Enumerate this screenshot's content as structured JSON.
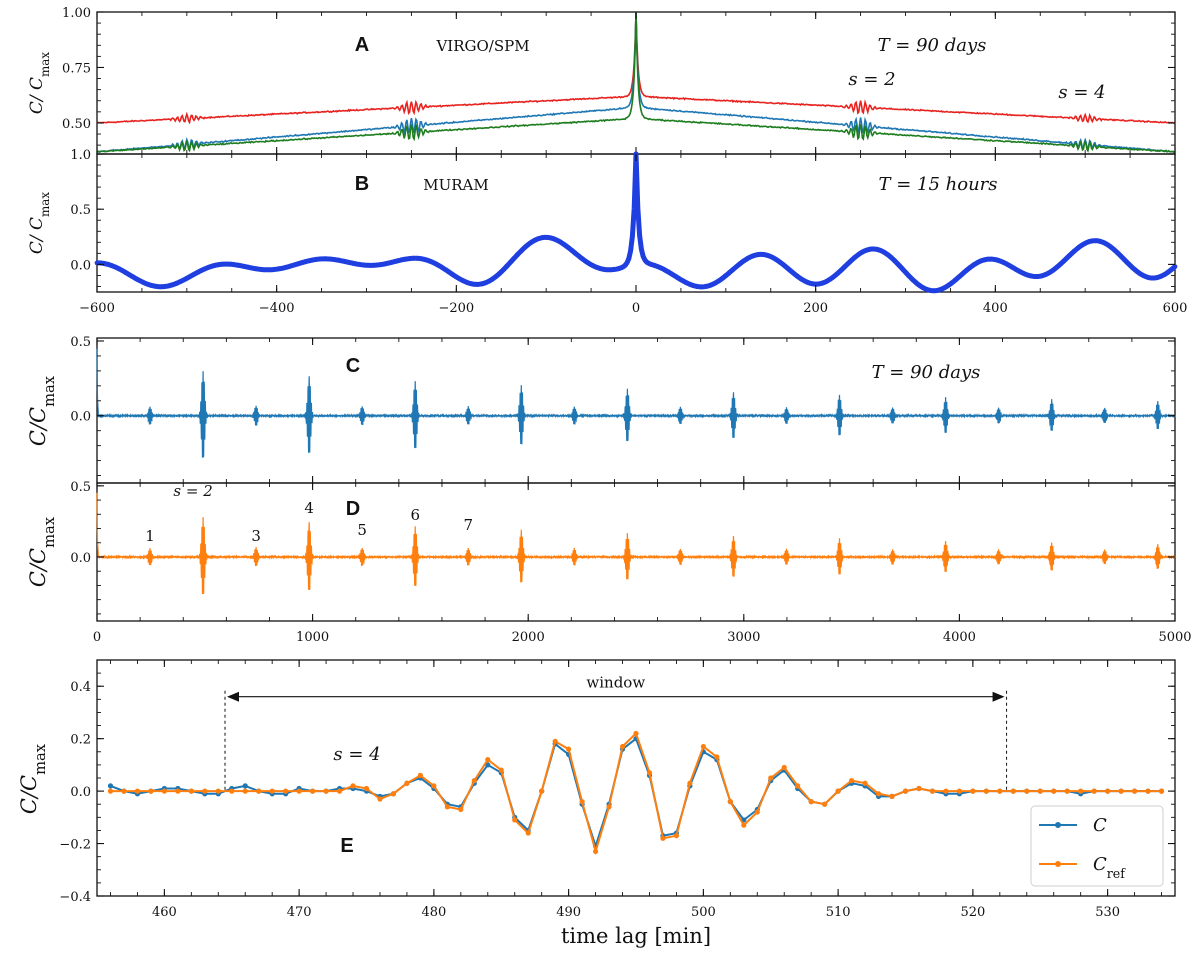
{
  "colors": {
    "red": "#e8231f",
    "blue_c": "#1f77b4",
    "green": "#1e7d1e",
    "muram": "#1f3fe0",
    "orange": "#ff7f0e",
    "axis": "#111111"
  },
  "x_label": "time lag [min]",
  "chart_data": [
    {
      "panel": "A",
      "type": "line",
      "label": "A",
      "title": "VIRGO/SPM",
      "duration": "T = 90  days",
      "ylabel": "C/ C_max",
      "xlim": [
        -600,
        600
      ],
      "ylim": [
        0.36,
        1.0
      ],
      "yticks": [
        "0.50",
        "0.75",
        "1.00"
      ],
      "annotations": [
        "s = 2",
        "s = 4"
      ],
      "series": [
        {
          "name": "red",
          "base_at_lag0": 0.62,
          "base_at_edge": 0.5,
          "peak": 1.0
        },
        {
          "name": "blue",
          "base_at_lag0": 0.57,
          "base_at_edge": 0.37,
          "peak": 1.0
        },
        {
          "name": "green",
          "base_at_lag0": 0.52,
          "base_at_edge": 0.37,
          "peak": 1.0
        }
      ],
      "oscillation_packets_min": [
        -500,
        -250,
        250,
        500
      ]
    },
    {
      "panel": "B",
      "type": "line",
      "label": "B",
      "title": "MURAM",
      "duration": "T = 15  hours",
      "ylabel": "C/ C_max",
      "xlim": [
        -600,
        600
      ],
      "ylim": [
        -0.25,
        1.0
      ],
      "yticks": [
        "0.0",
        "0.5",
        "1.0"
      ],
      "xticks": [
        "−600",
        "−400",
        "−200",
        "0",
        "200",
        "400",
        "600"
      ],
      "peak": 1.0
    },
    {
      "panel": "C",
      "type": "line",
      "label": "C",
      "duration": "T = 90 days",
      "ylabel": "C/C_max",
      "xlim": [
        0,
        5000
      ],
      "ylim": [
        -0.45,
        0.52
      ],
      "yticks": [
        "0.0",
        "0.5"
      ],
      "skip_spacing_min": 246,
      "first_skip_amplitude": 0.3
    },
    {
      "panel": "D",
      "type": "line",
      "label": "D",
      "ylabel": "C/C_max",
      "xlim": [
        0,
        5000
      ],
      "ylim": [
        -0.45,
        0.52
      ],
      "yticks": [
        "0.0",
        "0.5"
      ],
      "xticks": [
        "0",
        "1000",
        "2000",
        "3000",
        "4000",
        "5000"
      ],
      "skip_labels": [
        "s = 2",
        "1",
        "3",
        "4",
        "5",
        "6",
        "7"
      ],
      "skip_spacing_min": 246,
      "first_skip_amplitude": 0.28
    },
    {
      "panel": "E",
      "type": "line",
      "label": "E",
      "ylabel": "C/C_max",
      "xlabel": "time lag [min]",
      "xlim": [
        455,
        535
      ],
      "ylim": [
        -0.4,
        0.5
      ],
      "xticks": [
        "460",
        "470",
        "480",
        "490",
        "500",
        "510",
        "520",
        "530"
      ],
      "yticks": [
        "−0.4",
        "−0.2",
        "0.0",
        "0.2",
        "0.4"
      ],
      "annotation": "s = 4",
      "window_label": "window",
      "window_range": [
        464.5,
        522.5
      ],
      "legend": [
        "C",
        "C_ref"
      ],
      "series": [
        {
          "name": "C",
          "x": [
            456,
            457,
            458,
            459,
            460,
            461,
            462,
            463,
            464,
            465,
            466,
            467,
            468,
            469,
            470,
            471,
            472,
            473,
            474,
            475,
            476,
            477,
            478,
            479,
            480,
            481,
            482,
            483,
            484,
            485,
            486,
            487,
            488,
            489,
            490,
            491,
            492,
            493,
            494,
            495,
            496,
            497,
            498,
            499,
            500,
            501,
            502,
            503,
            504,
            505,
            506,
            507,
            508,
            509,
            510,
            511,
            512,
            513,
            514,
            515,
            516,
            517,
            518,
            519,
            520,
            521,
            522,
            523,
            524,
            525,
            526,
            527,
            528,
            529,
            530,
            531,
            532,
            533,
            534
          ],
          "y": [
            0.02,
            0.0,
            -0.01,
            0.0,
            0.01,
            0.01,
            0.0,
            -0.01,
            -0.01,
            0.01,
            0.02,
            0.0,
            -0.01,
            -0.01,
            0.01,
            0.0,
            0.0,
            0.01,
            0.01,
            0.0,
            -0.02,
            -0.01,
            0.03,
            0.05,
            0.01,
            -0.05,
            -0.06,
            0.03,
            0.1,
            0.07,
            -0.1,
            -0.15,
            0.0,
            0.18,
            0.14,
            -0.05,
            -0.21,
            -0.05,
            0.16,
            0.2,
            0.06,
            -0.17,
            -0.16,
            0.02,
            0.15,
            0.12,
            -0.04,
            -0.11,
            -0.07,
            0.04,
            0.08,
            0.01,
            -0.04,
            -0.05,
            0.0,
            0.03,
            0.02,
            -0.02,
            -0.02,
            0.0,
            0.01,
            0.0,
            -0.01,
            -0.01,
            0.0,
            0.0,
            0.0,
            0.0,
            0.0,
            0.0,
            0.0,
            0.0,
            -0.01,
            0.0,
            0.0,
            0.0,
            0.0,
            0.0,
            0.0
          ]
        },
        {
          "name": "C_ref",
          "x": [
            456,
            457,
            458,
            459,
            460,
            461,
            462,
            463,
            464,
            465,
            466,
            467,
            468,
            469,
            470,
            471,
            472,
            473,
            474,
            475,
            476,
            477,
            478,
            479,
            480,
            481,
            482,
            483,
            484,
            485,
            486,
            487,
            488,
            489,
            490,
            491,
            492,
            493,
            494,
            495,
            496,
            497,
            498,
            499,
            500,
            501,
            502,
            503,
            504,
            505,
            506,
            507,
            508,
            509,
            510,
            511,
            512,
            513,
            514,
            515,
            516,
            517,
            518,
            519,
            520,
            521,
            522,
            523,
            524,
            525,
            526,
            527,
            528,
            529,
            530,
            531,
            532,
            533,
            534
          ],
          "y": [
            0.0,
            0.0,
            0.0,
            0.0,
            0.0,
            0.0,
            0.0,
            0.0,
            0.0,
            0.0,
            0.0,
            0.0,
            0.0,
            0.0,
            0.0,
            0.0,
            0.0,
            0.0,
            0.02,
            0.01,
            -0.03,
            -0.01,
            0.03,
            0.06,
            0.02,
            -0.06,
            -0.07,
            0.04,
            0.12,
            0.08,
            -0.11,
            -0.16,
            0.0,
            0.19,
            0.16,
            -0.04,
            -0.23,
            -0.06,
            0.17,
            0.22,
            0.07,
            -0.18,
            -0.17,
            0.03,
            0.17,
            0.13,
            -0.04,
            -0.13,
            -0.08,
            0.05,
            0.09,
            0.02,
            -0.04,
            -0.05,
            0.0,
            0.04,
            0.03,
            -0.01,
            -0.02,
            0.0,
            0.01,
            0.0,
            0.0,
            0.0,
            0.0,
            0.0,
            0.0,
            0.0,
            0.0,
            0.0,
            0.0,
            0.0,
            0.0,
            0.0,
            0.0,
            0.0,
            0.0,
            0.0,
            0.0
          ]
        }
      ]
    }
  ]
}
